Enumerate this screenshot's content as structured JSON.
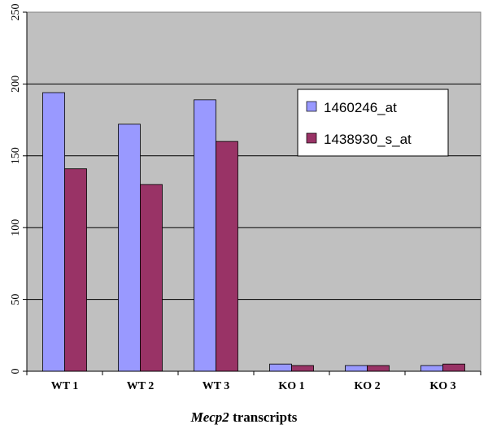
{
  "chart_data": {
    "type": "bar",
    "categories": [
      "WT 1",
      "WT 2",
      "WT 3",
      "KO 1",
      "KO 2",
      "KO 3"
    ],
    "series": [
      {
        "name": "1460246_at",
        "color": "#9999ff",
        "values": [
          194,
          172,
          189,
          5,
          4,
          4
        ]
      },
      {
        "name": "1438930_s_at",
        "color": "#993366",
        "values": [
          141,
          130,
          160,
          4,
          4,
          5
        ]
      }
    ],
    "ylim": [
      0,
      250
    ],
    "yticks": [
      0,
      50,
      100,
      150,
      200,
      250
    ],
    "xlabel_italic": "Mecp2",
    "xlabel_rest": " transcripts",
    "ylabel": "",
    "title": "",
    "grid": true,
    "legend_position": "top-right",
    "plot_background": "#c0c0c0"
  }
}
